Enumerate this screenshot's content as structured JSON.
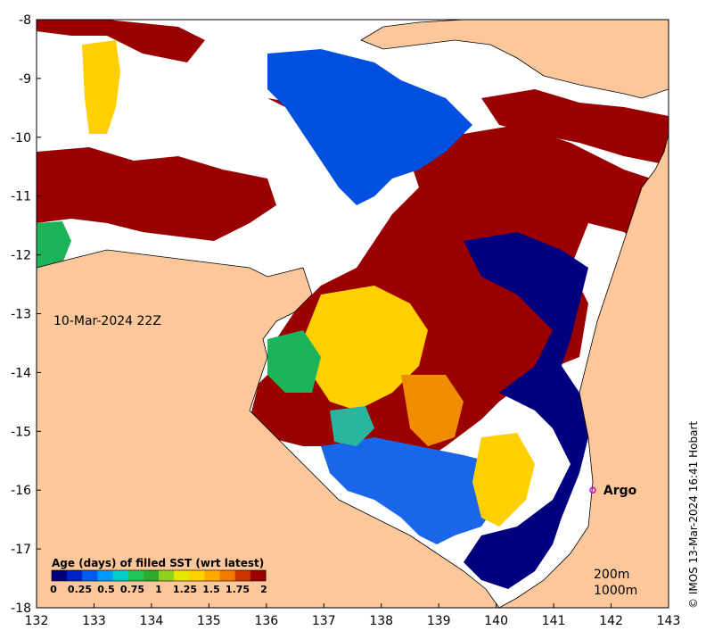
{
  "map": {
    "date_label": "10-Mar-2024 22Z",
    "credit": "© IMOS 13-Mar-2024 16:41 Hobart",
    "x_ticks": [
      "132",
      "133",
      "134",
      "135",
      "136",
      "137",
      "138",
      "139",
      "140",
      "141",
      "142",
      "143"
    ],
    "y_ticks": [
      "-8",
      "-9",
      "-10",
      "-11",
      "-12",
      "-13",
      "-14",
      "-15",
      "-16",
      "-17",
      "-18"
    ],
    "x_range": [
      132,
      143
    ],
    "y_range": [
      -18,
      -8
    ],
    "marker": {
      "label": "Argo",
      "lon": 141.68,
      "lat": -16.0,
      "color": "#e000e0"
    },
    "depth_labels": [
      "200m",
      "1000m"
    ],
    "colorbar": {
      "title": "Age (days) of filled SST (wrt latest)",
      "ticks": [
        "0",
        "0.25",
        "0.5",
        "0.75",
        "1",
        "1.25",
        "1.5",
        "1.75",
        "2"
      ],
      "colors": [
        "#00007f",
        "#0022cc",
        "#005cf0",
        "#0099ff",
        "#00cccc",
        "#1fc45a",
        "#2eaa2e",
        "#8fd11c",
        "#e8e600",
        "#ffd000",
        "#ffaa00",
        "#f07a00",
        "#cc3300",
        "#990000"
      ]
    },
    "colors": {
      "land": "#fcc89b",
      "ocean_nodata": "#ffffff",
      "dark_red": "#9a0000",
      "navy": "#00007f",
      "blue": "#0050e0",
      "mid_blue": "#1a66e8",
      "green": "#1db35a",
      "yellow": "#ffd000",
      "orange": "#f08c00"
    }
  }
}
